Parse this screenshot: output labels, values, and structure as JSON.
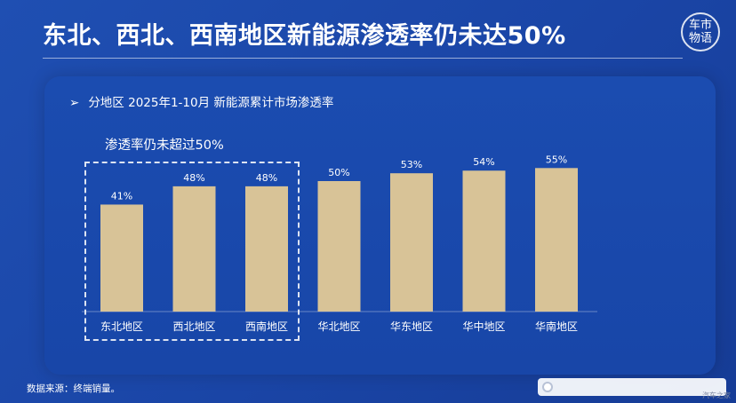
{
  "header": {
    "title": "东北、西北、西南地区新能源渗透率仍未达50%",
    "logo_text": "车市物语"
  },
  "panel": {
    "subtitle_marker": "➢",
    "subtitle": "分地区 2025年1-10月 新能源累计市场渗透率",
    "note": "渗透率仍未超过50%"
  },
  "footer": {
    "source": "数据来源：终端销量。",
    "watermark_text": "汽车之家"
  },
  "colors": {
    "bar": "#d8c397",
    "background": "#1a47a9",
    "text": "#ffffff"
  },
  "chart_data": {
    "type": "bar",
    "title": "分地区 2025年1-10月 新能源累计市场渗透率",
    "xlabel": "",
    "ylabel": "",
    "categories": [
      "东北地区",
      "西北地区",
      "西南地区",
      "华北地区",
      "华东地区",
      "华中地区",
      "华南地区"
    ],
    "values": [
      41,
      48,
      48,
      50,
      53,
      54,
      55
    ],
    "labels": [
      "41%",
      "48%",
      "48%",
      "50%",
      "53%",
      "54%",
      "55%"
    ],
    "unit": "%",
    "ylim": [
      0,
      70
    ],
    "grid": false,
    "legend": "none",
    "highlight": {
      "categories": [
        "东北地区",
        "西北地区",
        "西南地区"
      ],
      "style": "dashed-box"
    }
  }
}
